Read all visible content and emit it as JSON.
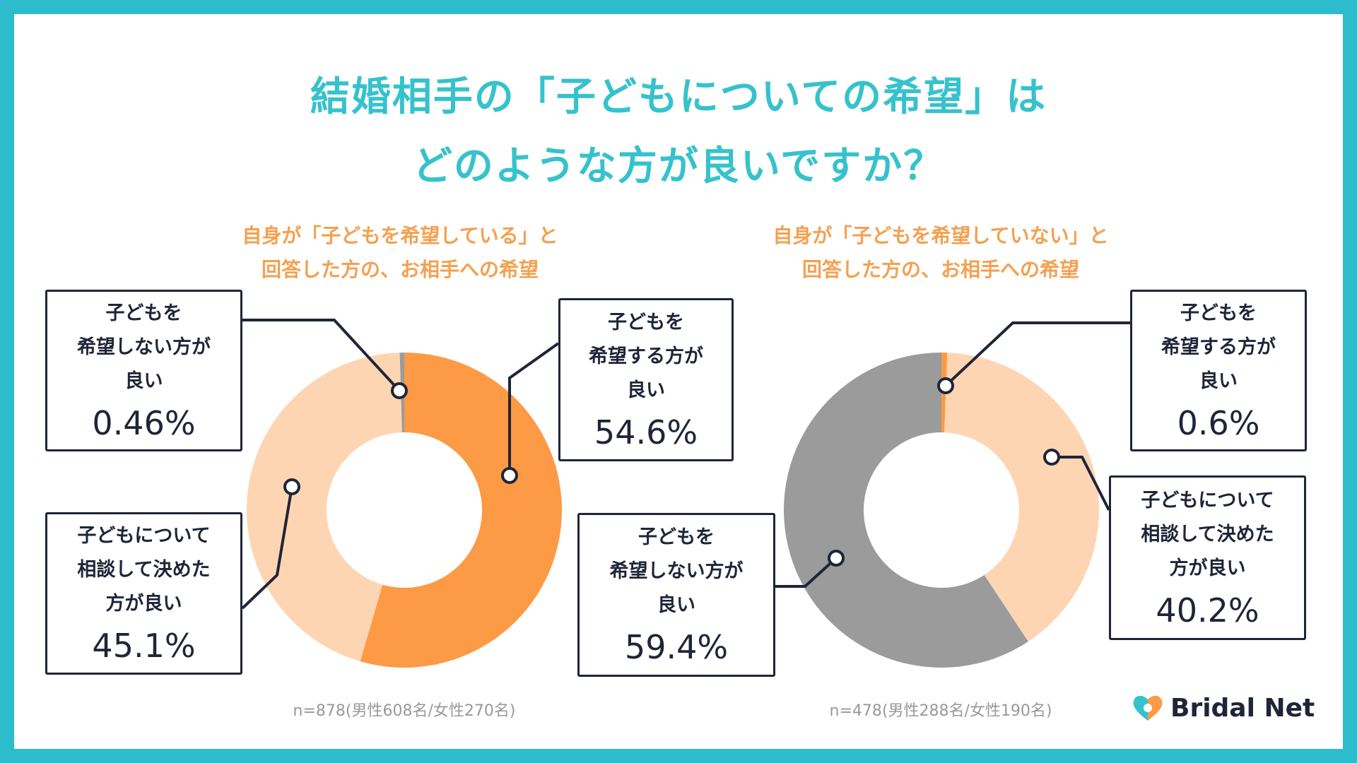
{
  "title": [
    "結婚相手の「子どもについての希望」は",
    "どのような方が良いですか？"
  ],
  "brand": "Bridal Net",
  "colors": {
    "border": "#2dbccc",
    "title": "#36c2cc",
    "subtitle": "#f5a050",
    "want": "#fd9a45",
    "discuss": "#fed5b2",
    "not_want": "#9b9b9b"
  },
  "chart_data": [
    {
      "type": "pie",
      "subtitle": [
        "自身が「子どもを希望している」と",
        "回答した方の、お相手への希望"
      ],
      "note": "n=878(男性608名/女性270名)",
      "slices": [
        {
          "label": [
            "子どもを",
            "希望する方が",
            "良い"
          ],
          "value": 54.6,
          "display": "54.6%",
          "color": "#fd9a45"
        },
        {
          "label": [
            "子どもについて",
            "相談して決めた",
            "方が良い"
          ],
          "value": 45.1,
          "display": "45.1%",
          "color": "#fed5b2"
        },
        {
          "label": [
            "子どもを",
            "希望しない方が",
            "良い"
          ],
          "value": 0.46,
          "display": "0.46%",
          "color": "#9b9b9b"
        }
      ]
    },
    {
      "type": "pie",
      "subtitle": [
        "自身が「子どもを希望していない」と",
        "回答した方の、お相手への希望"
      ],
      "note": "n=478(男性288名/女性190名)",
      "slices": [
        {
          "label": [
            "子どもを",
            "希望する方が",
            "良い"
          ],
          "value": 0.6,
          "display": "0.6%",
          "color": "#fd9a45"
        },
        {
          "label": [
            "子どもについて",
            "相談して決めた",
            "方が良い"
          ],
          "value": 40.2,
          "display": "40.2%",
          "color": "#fed5b2"
        },
        {
          "label": [
            "子どもを",
            "希望しない方が",
            "良い"
          ],
          "value": 59.4,
          "display": "59.4%",
          "color": "#9b9b9b"
        }
      ]
    }
  ]
}
